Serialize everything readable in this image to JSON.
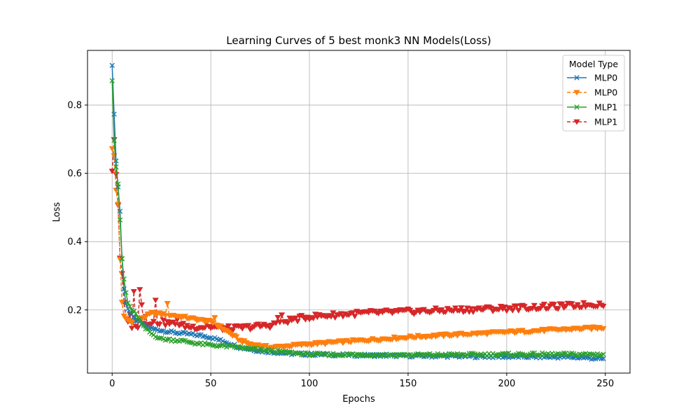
{
  "chart_data": {
    "type": "line",
    "title": "Learning Curves of 5 best monk3 NN Models(Loss)",
    "xlabel": "Epochs",
    "ylabel": "Loss",
    "xlim": [
      -12.5,
      262.5
    ],
    "ylim": [
      0.015,
      0.96
    ],
    "xticks": [
      0,
      50,
      100,
      150,
      200,
      250
    ],
    "yticks": [
      0.2,
      0.4,
      0.6,
      0.8
    ],
    "xtick_labels": [
      "0",
      "50",
      "100",
      "150",
      "200",
      "250"
    ],
    "ytick_labels": [
      "0.2",
      "0.4",
      "0.6",
      "0.8"
    ],
    "grid": true,
    "legend": {
      "title": "Model Type",
      "position": "top-right"
    },
    "series_epochs": 250,
    "series": [
      {
        "name": "MLP0",
        "color": "#1f77b4",
        "marker": "x",
        "linestyle": "solid",
        "keypoints": [
          [
            0,
            0.92
          ],
          [
            1,
            0.77
          ],
          [
            2,
            0.64
          ],
          [
            3,
            0.56
          ],
          [
            4,
            0.49
          ],
          [
            5,
            0.35
          ],
          [
            6,
            0.26
          ],
          [
            7,
            0.22
          ],
          [
            9,
            0.19
          ],
          [
            12,
            0.17
          ],
          [
            16,
            0.155
          ],
          [
            20,
            0.145
          ],
          [
            30,
            0.135
          ],
          [
            45,
            0.125
          ],
          [
            50,
            0.12
          ],
          [
            58,
            0.105
          ],
          [
            65,
            0.09
          ],
          [
            75,
            0.08
          ],
          [
            90,
            0.072
          ],
          [
            100,
            0.07
          ],
          [
            130,
            0.067
          ],
          [
            160,
            0.065
          ],
          [
            200,
            0.063
          ],
          [
            230,
            0.062
          ],
          [
            240,
            0.06
          ],
          [
            250,
            0.056
          ]
        ]
      },
      {
        "name": "MLP0",
        "color": "#ff7f0e",
        "marker": "v",
        "linestyle": "dashed",
        "keypoints": [
          [
            0,
            0.675
          ],
          [
            1,
            0.65
          ],
          [
            2,
            0.55
          ],
          [
            3,
            0.51
          ],
          [
            4,
            0.35
          ],
          [
            5,
            0.22
          ],
          [
            6,
            0.18
          ],
          [
            8,
            0.17
          ],
          [
            10,
            0.165
          ],
          [
            15,
            0.175
          ],
          [
            20,
            0.19
          ],
          [
            30,
            0.185
          ],
          [
            40,
            0.175
          ],
          [
            50,
            0.165
          ],
          [
            55,
            0.15
          ],
          [
            60,
            0.13
          ],
          [
            65,
            0.11
          ],
          [
            70,
            0.1
          ],
          [
            75,
            0.095
          ],
          [
            80,
            0.09
          ],
          [
            90,
            0.095
          ],
          [
            100,
            0.1
          ],
          [
            125,
            0.11
          ],
          [
            150,
            0.12
          ],
          [
            175,
            0.128
          ],
          [
            200,
            0.135
          ],
          [
            225,
            0.142
          ],
          [
            250,
            0.148
          ]
        ]
      },
      {
        "name": "MLP1",
        "color": "#2ca02c",
        "marker": "x",
        "linestyle": "solid",
        "keypoints": [
          [
            0,
            0.875
          ],
          [
            1,
            0.7
          ],
          [
            2,
            0.62
          ],
          [
            3,
            0.57
          ],
          [
            4,
            0.46
          ],
          [
            5,
            0.35
          ],
          [
            6,
            0.29
          ],
          [
            7,
            0.25
          ],
          [
            8,
            0.22
          ],
          [
            10,
            0.2
          ],
          [
            13,
            0.18
          ],
          [
            16,
            0.15
          ],
          [
            20,
            0.13
          ],
          [
            25,
            0.115
          ],
          [
            35,
            0.11
          ],
          [
            45,
            0.1
          ],
          [
            55,
            0.095
          ],
          [
            65,
            0.09
          ],
          [
            75,
            0.083
          ],
          [
            90,
            0.075
          ],
          [
            100,
            0.07
          ],
          [
            150,
            0.068
          ],
          [
            200,
            0.07
          ],
          [
            250,
            0.07
          ]
        ]
      },
      {
        "name": "MLP1",
        "color": "#d62728",
        "marker": "v",
        "linestyle": "dashed",
        "keypoints": [
          [
            0,
            0.61
          ],
          [
            1,
            0.7
          ],
          [
            2,
            0.6
          ],
          [
            3,
            0.5
          ],
          [
            4,
            0.35
          ],
          [
            5,
            0.3
          ],
          [
            6,
            0.22
          ],
          [
            7,
            0.18
          ],
          [
            8,
            0.16
          ],
          [
            10,
            0.15
          ],
          [
            12,
            0.15
          ],
          [
            15,
            0.16
          ],
          [
            20,
            0.165
          ],
          [
            30,
            0.16
          ],
          [
            40,
            0.15
          ],
          [
            50,
            0.15
          ],
          [
            60,
            0.145
          ],
          [
            70,
            0.15
          ],
          [
            80,
            0.155
          ],
          [
            90,
            0.17
          ],
          [
            100,
            0.18
          ],
          [
            125,
            0.19
          ],
          [
            150,
            0.195
          ],
          [
            175,
            0.2
          ],
          [
            200,
            0.205
          ],
          [
            225,
            0.21
          ],
          [
            250,
            0.218
          ]
        ]
      }
    ]
  }
}
